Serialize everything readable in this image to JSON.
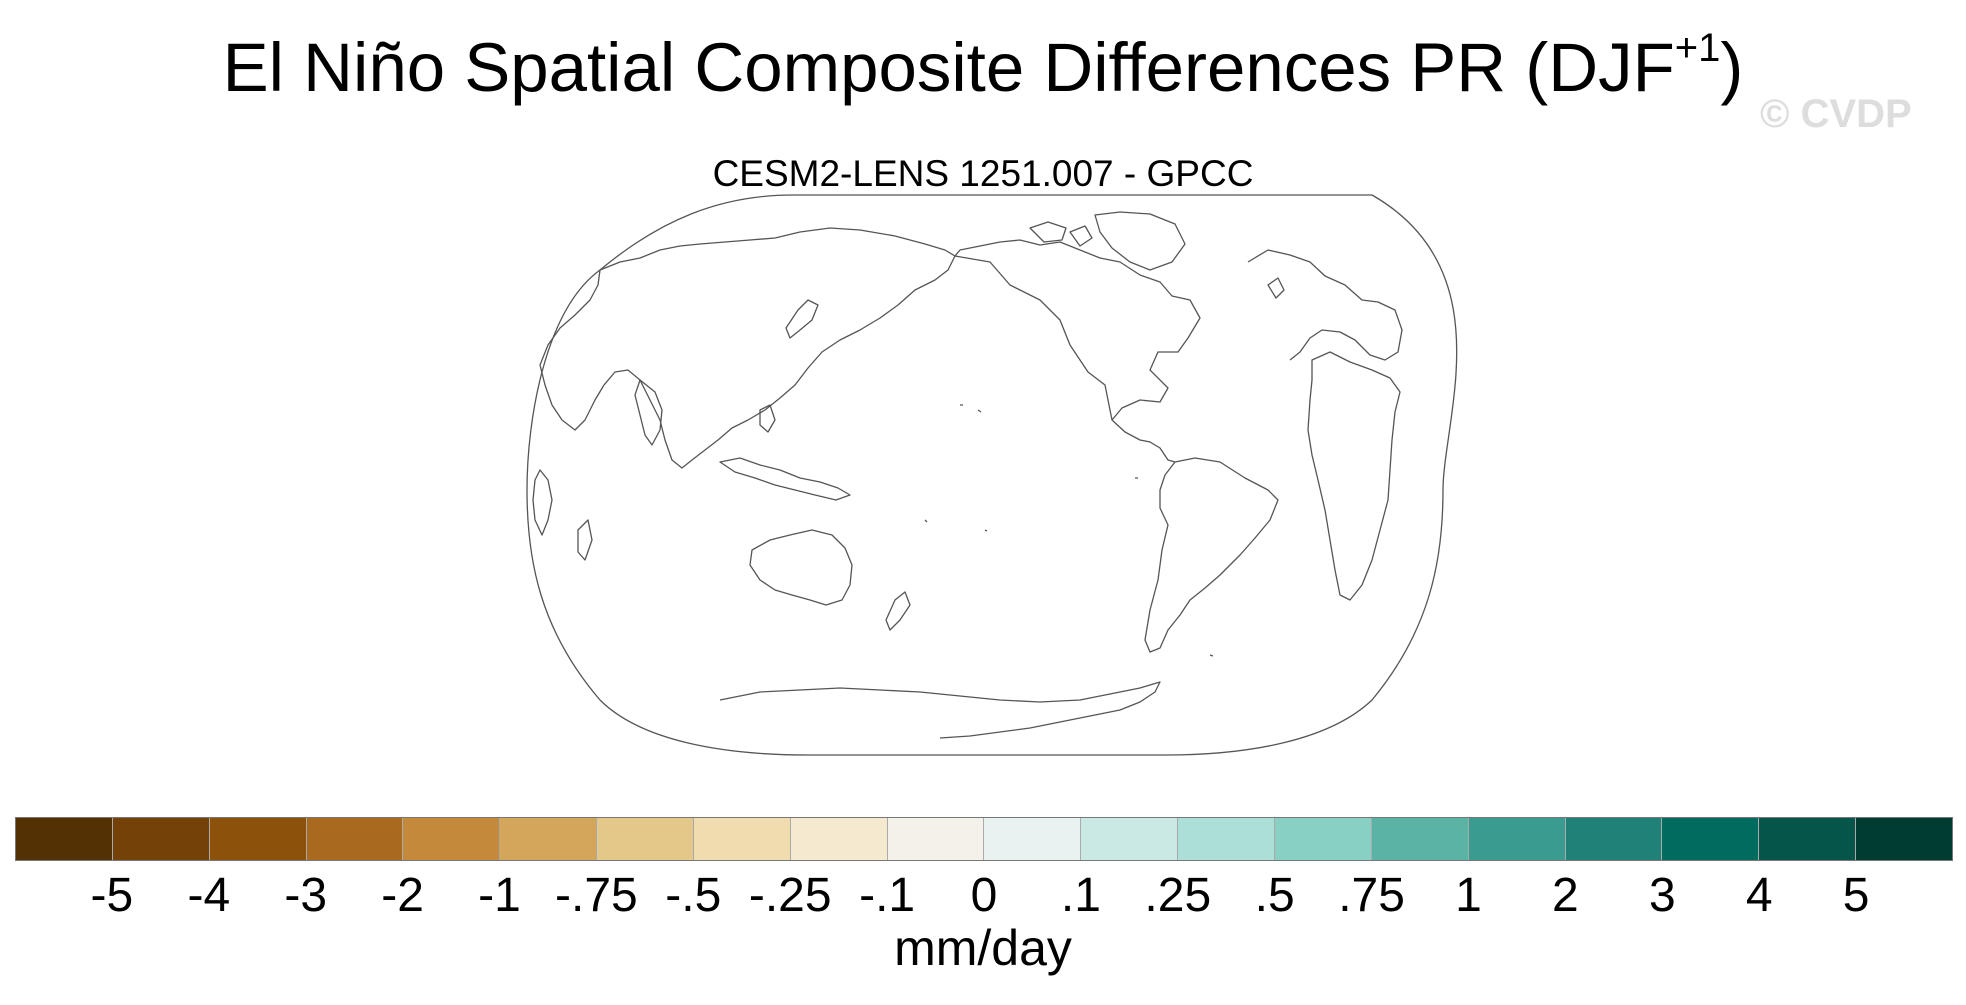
{
  "title": {
    "main": "El Niño Spatial Composite Differences PR (DJF",
    "superscript": "+1",
    "close": ")"
  },
  "watermark": "© CVDP",
  "subtitle": "CESM2-LENS 1251.007 - GPCC",
  "map": {
    "projection": "Robinson (centered on Pacific)",
    "fill": "#ffffff",
    "coastline_color": "#555555",
    "land_features": [
      "coastlines"
    ]
  },
  "colorbar": {
    "colors": [
      "#543005",
      "#744208",
      "#8c510a",
      "#a96a20",
      "#c48a3a",
      "#d3a65c",
      "#e3c88a",
      "#f0dcae",
      "#f5ead0",
      "#f4f0ea",
      "#e8f2f0",
      "#cbe9e4",
      "#acdfd7",
      "#87d0c3",
      "#5bb3a6",
      "#3a9c90",
      "#1f8178",
      "#026b60",
      "#06554a",
      "#003c30"
    ],
    "tick_labels": [
      "-5",
      "-4",
      "-3",
      "-2",
      "-1",
      "-.75",
      "-.5",
      "-.25",
      "-.1",
      "0",
      ".1",
      ".25",
      ".5",
      ".75",
      "1",
      "2",
      "3",
      "4",
      "5"
    ],
    "units": "mm/day"
  }
}
